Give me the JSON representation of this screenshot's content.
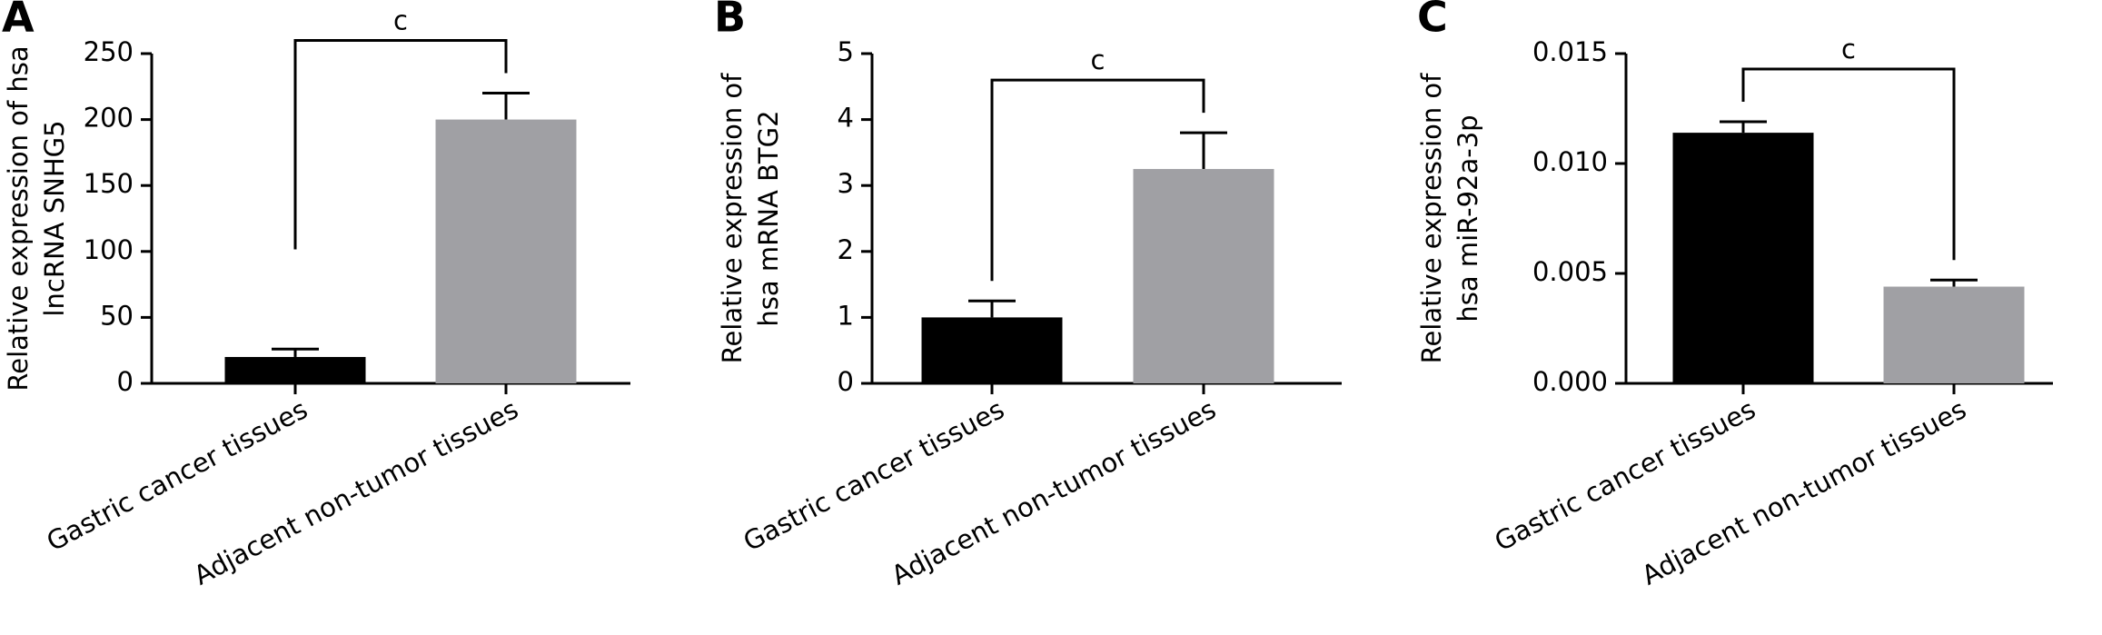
{
  "chart_data": [
    {
      "type": "bar",
      "panel": "A",
      "y_label": [
        "Relative expression of hsa",
        "lncRNA SNHG5"
      ],
      "categories": [
        "Gastric cancer tissues",
        "Adjacent non-tumor tissues"
      ],
      "values": [
        20,
        200
      ],
      "errors": [
        6,
        20
      ],
      "colors": [
        "#000000",
        "#a0a0a4"
      ],
      "ylim": [
        0,
        250
      ],
      "yticks": [
        0,
        50,
        100,
        150,
        200,
        250
      ],
      "annotation": "c"
    },
    {
      "type": "bar",
      "panel": "B",
      "y_label": [
        "Relative expression of",
        "hsa mRNA BTG2"
      ],
      "categories": [
        "Gastric cancer tissues",
        "Adjacent non-tumor tissues"
      ],
      "values": [
        1.0,
        3.25
      ],
      "errors": [
        0.25,
        0.55
      ],
      "colors": [
        "#000000",
        "#a0a0a4"
      ],
      "ylim": [
        0,
        5
      ],
      "yticks": [
        0,
        1,
        2,
        3,
        4,
        5
      ],
      "annotation": "c"
    },
    {
      "type": "bar",
      "panel": "C",
      "y_label": [
        "Relative expression of",
        "hsa miR-92a-3p"
      ],
      "categories": [
        "Gastric cancer tissues",
        "Adjacent non-tumor tissues"
      ],
      "values": [
        0.0114,
        0.0044
      ],
      "errors": [
        0.0005,
        0.0003
      ],
      "colors": [
        "#000000",
        "#a0a0a4"
      ],
      "ylim": [
        0,
        0.015
      ],
      "yticks": [
        {
          "value": 0,
          "label": "0.000"
        },
        {
          "value": 0.005,
          "label": "0.005"
        },
        {
          "value": 0.01,
          "label": "0.010"
        },
        {
          "value": 0.015,
          "label": "0.015"
        }
      ],
      "annotation": "c"
    }
  ]
}
